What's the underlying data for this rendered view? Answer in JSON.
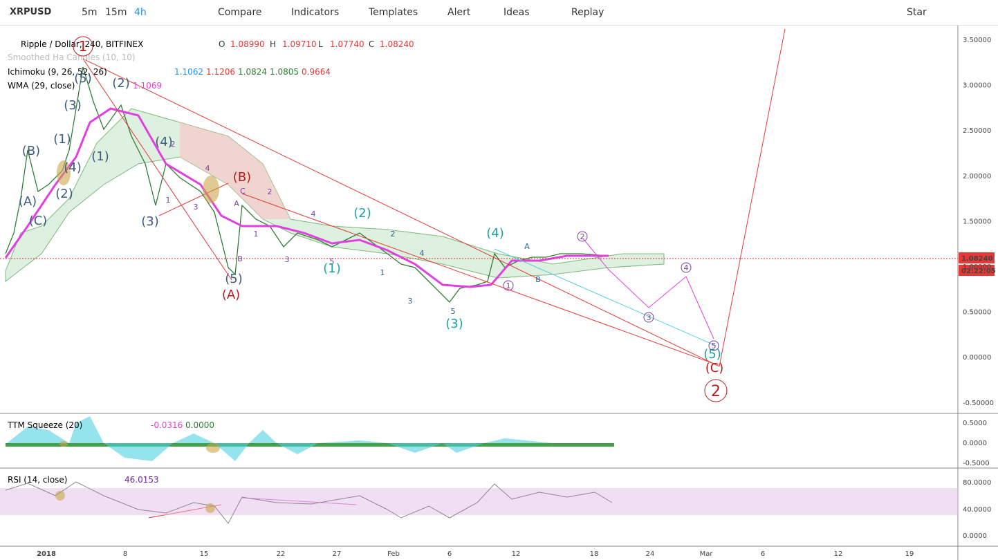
{
  "toolbar": {
    "symbol": "XRPUSD",
    "intervals": [
      "5m",
      "15m",
      "4h"
    ],
    "items": [
      "Compare",
      "Indicators",
      "Templates",
      "Alert",
      "Ideas",
      "Replay",
      "Star"
    ]
  },
  "legend": {
    "title": "Ripple / Dollar, 240, BITFINEX",
    "ohlc": [
      "O",
      "1.08990",
      "H",
      "1.09710",
      "L",
      "1.07740",
      "C",
      "1.08240"
    ],
    "smoothed": "Smoothed Ha Candles (10, 10)",
    "ichimoku": "Ichimoku (9, 26, 52, 26)",
    "ichimoku_values": [
      "1.1062",
      "1.1206",
      "1.0824",
      "1.0805",
      "0.9664"
    ],
    "wma": "WMA (29, close)",
    "wma_value": "1.1069"
  },
  "price_axis": [
    "3.50000",
    "3.00000",
    "2.50000",
    "2.00000",
    "1.50000",
    "1.00000",
    "0.50000",
    "0.00000",
    "-0.50000"
  ],
  "price_tags": [
    "1.08240",
    "02:22:05"
  ],
  "ttm": {
    "label": "TTM Squeeze (20)",
    "values": [
      "-0.0316",
      "0.0000"
    ],
    "axis": [
      "0.5000",
      "0.0000",
      "-0.5000"
    ]
  },
  "rsi": {
    "label": "RSI (14, close)",
    "value": "46.0153",
    "axis": [
      "80.0000",
      "40.0000",
      "0.0000"
    ]
  },
  "time_axis": [
    "2018",
    "8",
    "15",
    "22",
    "27",
    "Feb",
    "6",
    "12",
    "18",
    "24",
    "Mar",
    "6",
    "12",
    "19"
  ],
  "waves": [
    "(B)",
    "(A)",
    "(C)",
    "(1)",
    "(3)",
    "(5)",
    "(2)",
    "(1)",
    "(4)",
    "(2)",
    "(4)",
    "(3)",
    "(B)",
    "(A)",
    "(C)",
    "2",
    "4",
    "3",
    "1",
    "A",
    "C",
    "B",
    "1",
    "2",
    "4",
    "3",
    "5",
    "(5)",
    "(2)",
    "(1)",
    "(4)",
    "(3)",
    "(5)",
    "2",
    "1",
    "4",
    "3",
    "5",
    "A",
    "B"
  ],
  "circled": [
    "1",
    "2",
    "3",
    "4",
    "5",
    "1",
    "2"
  ]
}
